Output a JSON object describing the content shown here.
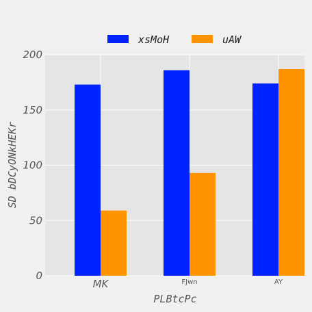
{
  "chart_data": {
    "type": "bar",
    "categories": [
      "MK",
      "FJwn",
      "AY"
    ],
    "category_label_styles": [
      "italic-large",
      "small",
      "small"
    ],
    "series": [
      {
        "name": "xsMoH",
        "color": "#0022ff",
        "values": [
          173,
          186,
          174
        ]
      },
      {
        "name": "uAW",
        "color": "#ff9400",
        "values": [
          59,
          93,
          187
        ]
      }
    ],
    "title": "",
    "xlabel": "PLBtcPc",
    "ylabel": "SD bDCyONkHEKr",
    "ylim": [
      0,
      200
    ],
    "yticks": [
      0,
      50,
      100,
      150,
      200
    ],
    "grid": true,
    "legend_position": "top-center"
  }
}
